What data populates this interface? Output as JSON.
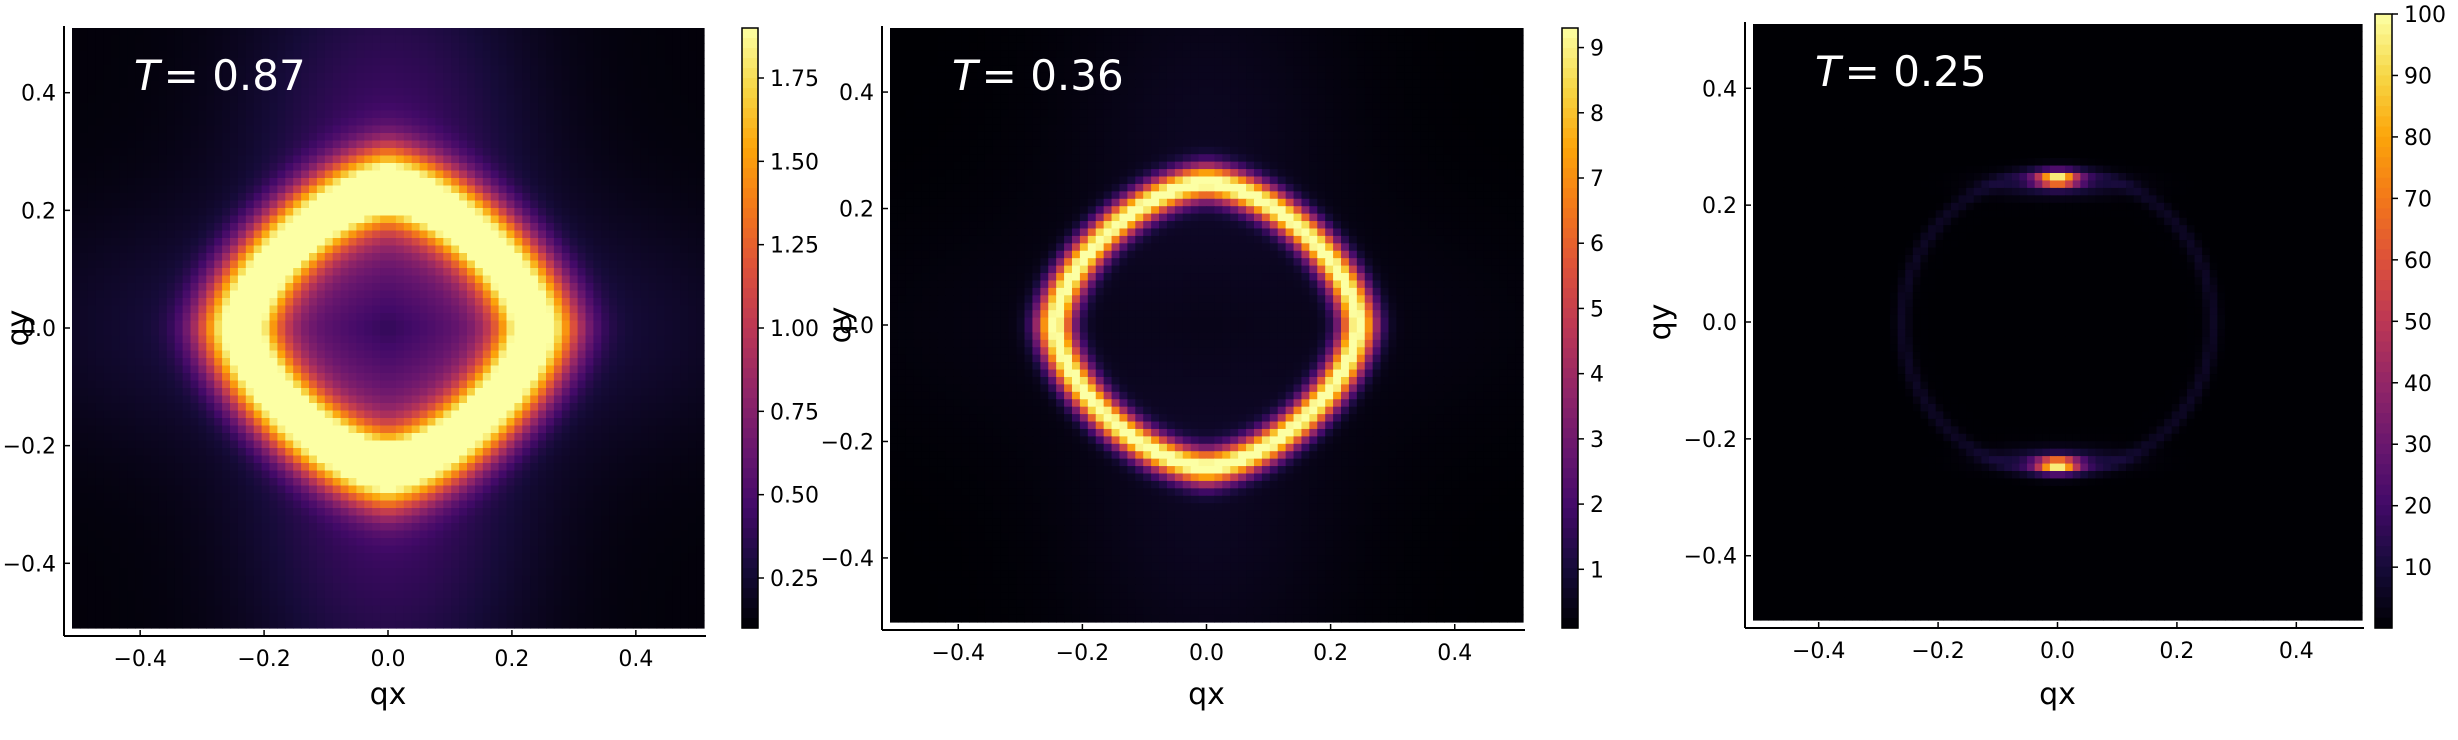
{
  "chart_data": [
    {
      "type": "heatmap",
      "panel_label": "T = 0.87",
      "label_var": "T",
      "label_val": "= 0.87",
      "xlabel": "qx",
      "ylabel": "qy",
      "xlim": [
        -0.51,
        0.51
      ],
      "ylim": [
        -0.51,
        0.51
      ],
      "xticks": [
        -0.4,
        -0.2,
        0.0,
        0.2,
        0.4
      ],
      "xtick_labels": [
        "−0.4",
        "−0.2",
        "0.0",
        "0.2",
        "0.4"
      ],
      "yticks": [
        -0.4,
        -0.2,
        0.0,
        0.2,
        0.4
      ],
      "ytick_labels": [
        "−0.4",
        "−0.2",
        "0.0",
        "0.2",
        "0.4"
      ],
      "colorbar": {
        "range": [
          0.1,
          1.9
        ],
        "ticks": [
          0.25,
          0.5,
          0.75,
          1.0,
          1.25,
          1.5,
          1.75
        ],
        "tick_labels": [
          "0.25",
          "0.50",
          "0.75",
          "1.00",
          "1.25",
          "1.50",
          "1.75"
        ]
      },
      "colormap": "inferno",
      "grid": false,
      "ring": {
        "radius": 0.245,
        "diamond_p": 1.5,
        "width": 0.065,
        "peak": 1.8,
        "center_value": 0.42,
        "background": 0.12,
        "vertical_tail": 0.32,
        "horizontal_tail": 0.15,
        "top_bottom_hotspot": 0.0
      }
    },
    {
      "type": "heatmap",
      "panel_label": "T = 0.36",
      "label_var": "T",
      "label_val": "= 0.36",
      "xlabel": "qx",
      "ylabel": "qy",
      "xlim": [
        -0.51,
        0.51
      ],
      "ylim": [
        -0.51,
        0.51
      ],
      "xticks": [
        -0.4,
        -0.2,
        0.0,
        0.2,
        0.4
      ],
      "xtick_labels": [
        "−0.4",
        "−0.2",
        "0.0",
        "0.2",
        "0.4"
      ],
      "yticks": [
        -0.4,
        -0.2,
        0.0,
        0.2,
        0.4
      ],
      "ytick_labels": [
        "−0.4",
        "−0.2",
        "0.0",
        "0.2",
        "0.4"
      ],
      "colorbar": {
        "range": [
          0.1,
          9.3
        ],
        "ticks": [
          1,
          2,
          3,
          4,
          5,
          6,
          7,
          8,
          9
        ],
        "tick_labels": [
          "1",
          "2",
          "3",
          "4",
          "5",
          "6",
          "7",
          "8",
          "9"
        ]
      },
      "colormap": "inferno",
      "grid": false,
      "ring": {
        "radius": 0.245,
        "diamond_p": 1.6,
        "width": 0.03,
        "peak": 9.2,
        "center_value": 0.1,
        "background": 0.1,
        "vertical_tail": 0.5,
        "horizontal_tail": 0.2,
        "top_bottom_hotspot": 0.0
      }
    },
    {
      "type": "heatmap",
      "panel_label": "T = 0.25",
      "label_var": "T",
      "label_val": "= 0.25",
      "xlabel": "qx",
      "ylabel": "qy",
      "xlim": [
        -0.51,
        0.51
      ],
      "ylim": [
        -0.51,
        0.51
      ],
      "xticks": [
        -0.4,
        -0.2,
        0.0,
        0.2,
        0.4
      ],
      "xtick_labels": [
        "−0.4",
        "−0.2",
        "0.0",
        "0.2",
        "0.4"
      ],
      "yticks": [
        -0.4,
        -0.2,
        0.0,
        0.2,
        0.4
      ],
      "ytick_labels": [
        "−0.4",
        "−0.2",
        "0.0",
        "0.2",
        "0.4"
      ],
      "colorbar": {
        "range": [
          0.1,
          100
        ],
        "ticks": [
          10,
          20,
          30,
          40,
          50,
          60,
          70,
          80,
          90,
          100
        ],
        "tick_labels": [
          "10",
          "20",
          "30",
          "40",
          "50",
          "60",
          "70",
          "80",
          "90",
          "100"
        ]
      },
      "colormap": "inferno",
      "grid": false,
      "ring": {
        "radius": 0.26,
        "diamond_p": 2.0,
        "width": 0.012,
        "peak": 6.0,
        "center_value": 0.1,
        "background": 0.1,
        "vertical_tail": 0.0,
        "horizontal_tail": 0.0,
        "top_bottom_hotspot": 95.0
      }
    }
  ]
}
